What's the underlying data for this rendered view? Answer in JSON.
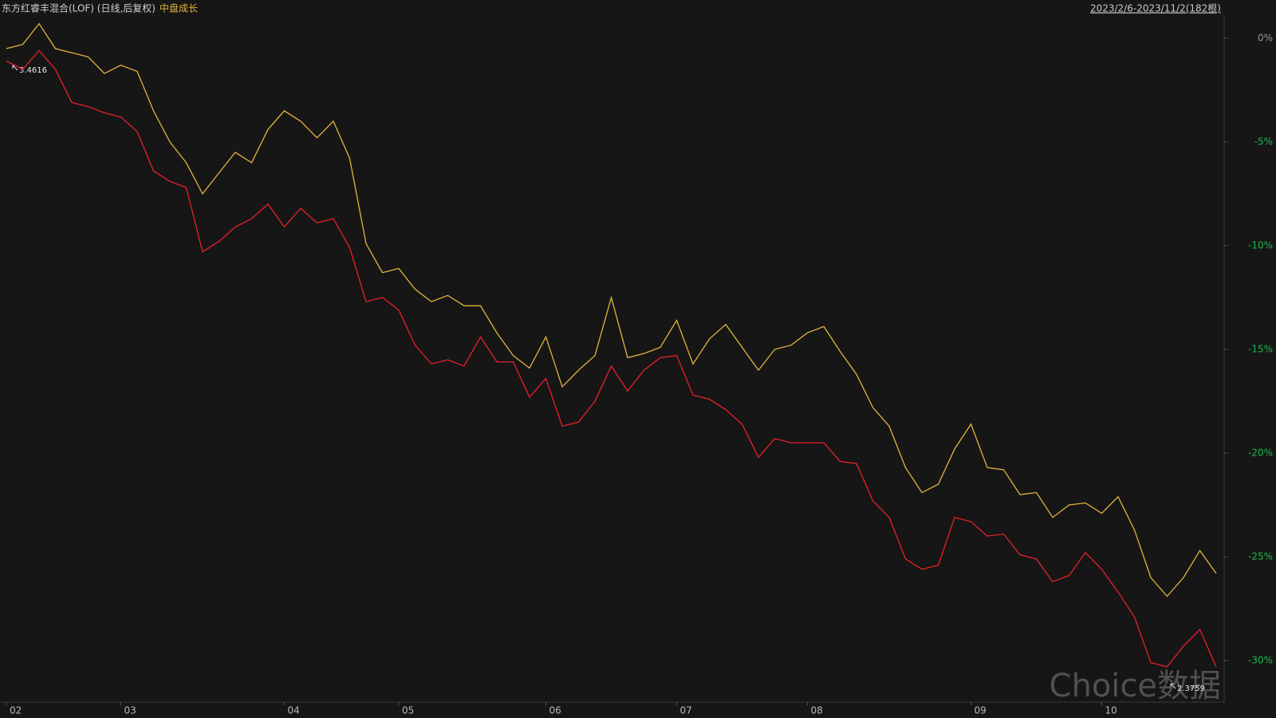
{
  "chart_data": {
    "type": "line",
    "title": "东方红睿丰混合(LOF) (日线,后复权)",
    "date_range": "2023/2/6-2023/11/2(182根)",
    "watermark": "Choice数据",
    "annotations": [
      "3.4616",
      "2.3759"
    ],
    "categories": [
      "02",
      null,
      null,
      null,
      null,
      null,
      null,
      "03",
      null,
      null,
      null,
      null,
      null,
      null,
      null,
      null,
      null,
      "04",
      null,
      null,
      null,
      null,
      null,
      null,
      "05",
      null,
      null,
      null,
      null,
      null,
      null,
      null,
      null,
      "06",
      null,
      null,
      null,
      null,
      null,
      null,
      null,
      "07",
      null,
      null,
      null,
      null,
      null,
      null,
      null,
      "08",
      null,
      null,
      null,
      null,
      null,
      null,
      null,
      null,
      null,
      "09",
      null,
      null,
      null,
      null,
      null,
      null,
      null,
      "10",
      null,
      null,
      null,
      null,
      null,
      null,
      null
    ],
    "series": [
      {
        "color": "#e8202a",
        "values": [
          -1.1,
          -1.5,
          -0.6,
          -1.5,
          -3.1,
          -3.3,
          -3.6,
          -3.8,
          -4.5,
          -6.4,
          -6.9,
          -7.2,
          -10.3,
          -9.8,
          -9.1,
          -8.7,
          -8.0,
          -9.1,
          -8.2,
          -8.9,
          -8.7,
          -10.1,
          -12.7,
          -12.5,
          -13.1,
          -14.8,
          -15.7,
          -15.5,
          -15.8,
          -14.4,
          -15.6,
          -15.6,
          -17.3,
          -16.4,
          -18.7,
          -18.5,
          -17.5,
          -15.8,
          -17.0,
          -16.0,
          -15.4,
          -15.3,
          -17.2,
          -17.4,
          -17.9,
          -18.6,
          -20.2,
          -19.3,
          -19.5,
          -19.5,
          -19.5,
          -20.4,
          -20.5,
          -22.3,
          -23.1,
          -25.1,
          -25.6,
          -25.4,
          -23.1,
          -23.3,
          -24.0,
          -23.9,
          -24.9,
          -25.1,
          -26.2,
          -25.9,
          -24.8,
          -25.6,
          -26.7,
          -27.9,
          -30.1,
          -30.3,
          -29.3,
          -28.5,
          -30.3
        ]
      },
      {
        "name": "中盘成长",
        "color": "#e2b43c",
        "values": [
          -0.5,
          -0.3,
          0.7,
          -0.5,
          -0.7,
          -0.9,
          -1.7,
          -1.3,
          -1.6,
          -3.5,
          -5.0,
          -6.0,
          -7.5,
          -6.5,
          -5.5,
          -6.0,
          -4.4,
          -3.5,
          -4.0,
          -4.8,
          -4.0,
          -5.8,
          -9.9,
          -11.3,
          -11.1,
          -12.1,
          -12.7,
          -12.4,
          -12.9,
          -12.9,
          -14.2,
          -15.3,
          -15.9,
          -14.4,
          -16.8,
          -16.0,
          -15.3,
          -12.5,
          -15.4,
          -15.2,
          -14.9,
          -13.6,
          -15.7,
          -14.5,
          -13.8,
          -14.9,
          -16.0,
          -15.0,
          -14.8,
          -14.2,
          -13.9,
          -15.1,
          -16.2,
          -17.8,
          -18.7,
          -20.7,
          -21.9,
          -21.5,
          -19.8,
          -18.6,
          -20.7,
          -20.8,
          -22.0,
          -21.9,
          -23.1,
          -22.5,
          -22.4,
          -22.9,
          -22.1,
          -23.7,
          -26.0,
          -26.9,
          -26.0,
          -24.7,
          -25.8
        ]
      }
    ],
    "ylim": [
      -32,
      1.15
    ],
    "yticks": [
      {
        "value": 0,
        "label": "0%"
      },
      {
        "value": -5,
        "label": "-5%"
      },
      {
        "value": -10,
        "label": "-10%"
      },
      {
        "value": -15,
        "label": "-15%"
      },
      {
        "value": -20,
        "label": "-20%"
      },
      {
        "value": -25,
        "label": "-25%"
      },
      {
        "value": -30,
        "label": "-30%"
      }
    ],
    "grid": false
  }
}
